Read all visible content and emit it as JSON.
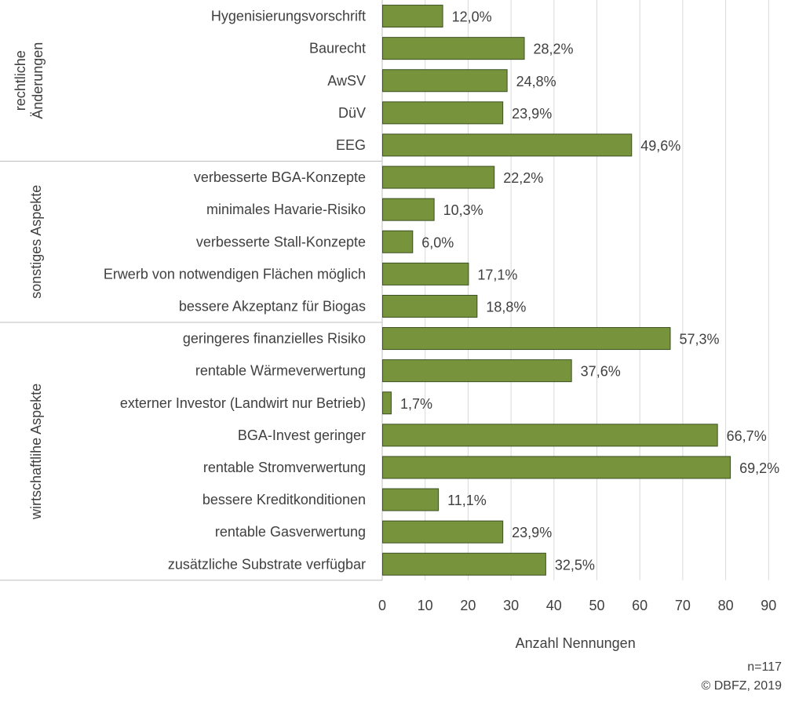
{
  "chart_data": {
    "type": "bar",
    "orientation": "horizontal",
    "xlabel": "Anzahl Nennungen",
    "xlim": [
      0,
      90
    ],
    "xticks": [
      0,
      10,
      20,
      30,
      40,
      50,
      60,
      70,
      80,
      90
    ],
    "grid": true,
    "bar_color": "#77933c",
    "bar_edge_color": "#3b5020",
    "groups": [
      {
        "label_lines": [
          "rechtliche",
          "Änderungen"
        ],
        "items": [
          {
            "category": "Hygenisierungsvorschrift",
            "value": 14,
            "label": "12,0%"
          },
          {
            "category": "Baurecht",
            "value": 33,
            "label": "28,2%"
          },
          {
            "category": "AwSV",
            "value": 29,
            "label": "24,8%"
          },
          {
            "category": "DüV",
            "value": 28,
            "label": "23,9%"
          },
          {
            "category": "EEG",
            "value": 58,
            "label": "49,6%"
          }
        ]
      },
      {
        "label_lines": [
          "sonstiges Aspekte"
        ],
        "items": [
          {
            "category": "verbesserte BGA-Konzepte",
            "value": 26,
            "label": "22,2%"
          },
          {
            "category": "minimales Havarie-Risiko",
            "value": 12,
            "label": "10,3%"
          },
          {
            "category": "verbesserte Stall-Konzepte",
            "value": 7,
            "label": "6,0%"
          },
          {
            "category": "Erwerb von notwendigen Flächen möglich",
            "value": 20,
            "label": "17,1%"
          },
          {
            "category": "bessere Akzeptanz für Biogas",
            "value": 22,
            "label": "18,8%"
          }
        ]
      },
      {
        "label_lines": [
          "wirtschaftlihe Aspekte"
        ],
        "items": [
          {
            "category": "geringeres finanzielles Risiko",
            "value": 67,
            "label": "57,3%"
          },
          {
            "category": "rentable Wärmeverwertung",
            "value": 44,
            "label": "37,6%"
          },
          {
            "category": "externer Investor (Landwirt nur Betrieb)",
            "value": 2,
            "label": "1,7%"
          },
          {
            "category": "BGA-Invest geringer",
            "value": 78,
            "label": "66,7%"
          },
          {
            "category": "rentable Stromverwertung",
            "value": 81,
            "label": "69,2%"
          },
          {
            "category": "bessere Kreditkonditionen",
            "value": 13,
            "label": "11,1%"
          },
          {
            "category": "rentable Gasverwertung",
            "value": 28,
            "label": "23,9%"
          },
          {
            "category": "zusätzliche Substrate verfügbar",
            "value": 38,
            "label": "32,5%"
          }
        ]
      }
    ]
  },
  "footer": {
    "sample_size": "n=117",
    "copyright": "© DBFZ, 2019"
  }
}
